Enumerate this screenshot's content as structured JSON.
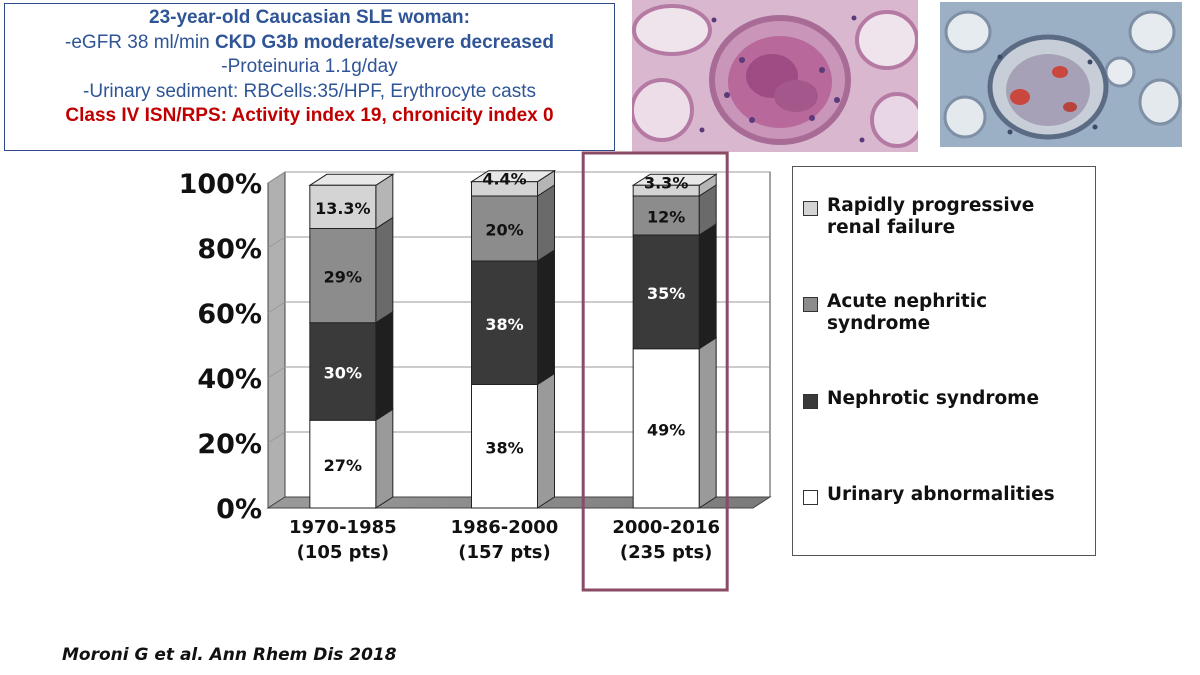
{
  "case": {
    "title": "23-year-old Caucasian SLE woman:",
    "egfr_prefix": "-eGFR 38 ml/min ",
    "egfr_bold": "CKD G3b moderate/severe decreased",
    "proteinuria": "-Proteinuria 1.1g/day",
    "sediment": "-Urinary sediment:  RBCells:35/HPF, Erythrocyte casts",
    "classification": "Class IV ISN/RPS: Activity index 19, chronicity index 0"
  },
  "images": [
    "kidney-biopsy-he-stain",
    "kidney-biopsy-trichrome-stain"
  ],
  "chart_data": {
    "type": "bar",
    "stacked": true,
    "categories": [
      "1970-1985\n(105 pts)",
      "1986-2000\n(157 pts)",
      "2000-2016\n(235 pts)"
    ],
    "series": [
      {
        "name": "Urinary abnormalities",
        "values": [
          27,
          38,
          49
        ],
        "labels": [
          "27%",
          "38%",
          "49%"
        ],
        "color": "#ffffff"
      },
      {
        "name": "Nephrotic syndrome",
        "values": [
          30,
          38,
          35
        ],
        "labels": [
          "30%",
          "38%",
          "35%"
        ],
        "color": "#3a3a3a"
      },
      {
        "name": "Acute nephritic\nsyndrome",
        "values": [
          29,
          20,
          12
        ],
        "labels": [
          "29%",
          "20%",
          "12%"
        ],
        "color": "#8c8c8c"
      },
      {
        "name": "Rapidly progressive\nrenal failure",
        "values": [
          13.3,
          4.4,
          3.3
        ],
        "labels": [
          "13.3%",
          "4.4%",
          "3.3%"
        ],
        "color": "#d4d4d4"
      }
    ],
    "yticks": [
      "0%",
      "20%",
      "40%",
      "60%",
      "80%",
      "100%"
    ],
    "ylim": [
      0,
      100
    ],
    "highlight_category": 2,
    "highlight_color": "#8b4a66",
    "legend": "right"
  },
  "citation": "Moroni G et al. Ann Rhem Dis 2018"
}
